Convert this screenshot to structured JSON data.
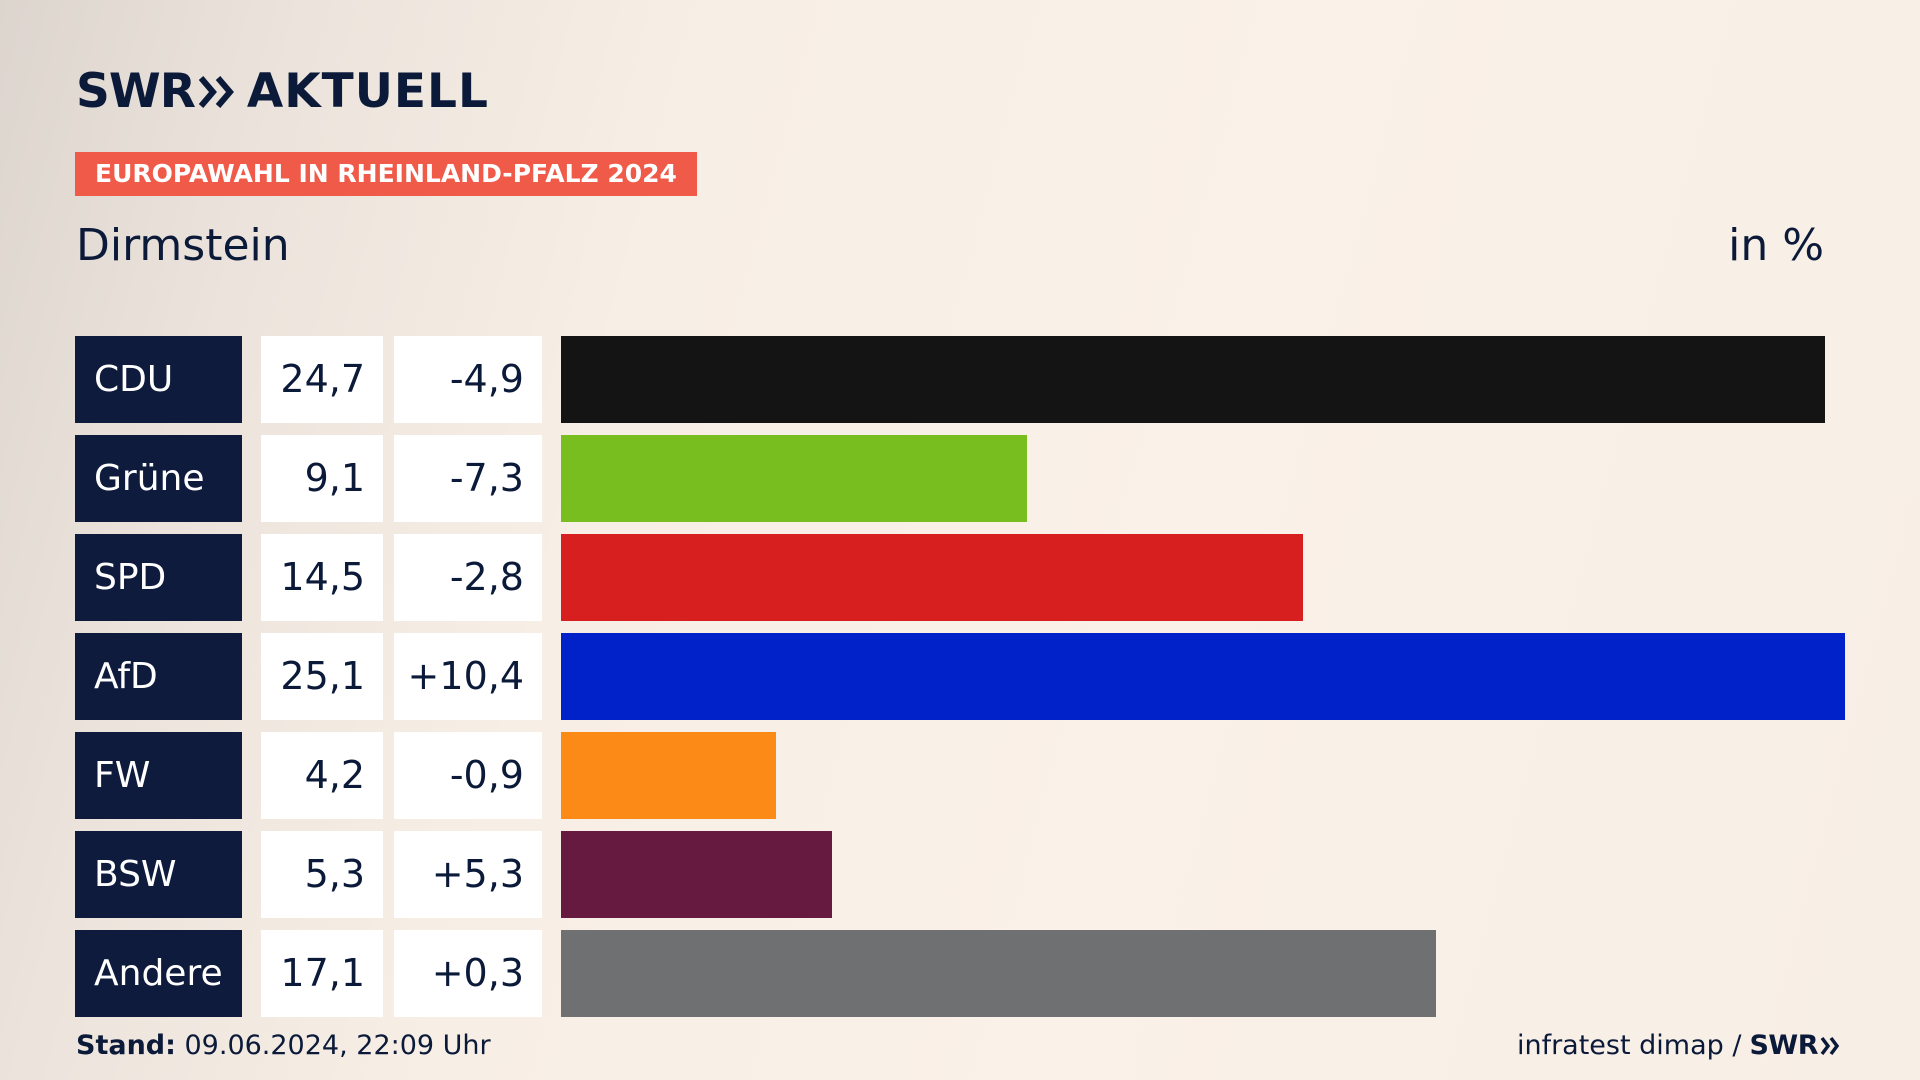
{
  "header": {
    "logo_brand": "SWR",
    "logo_product": "AKTUELL",
    "banner": "EUROPAWAHL IN RHEINLAND-PFALZ 2024",
    "region": "Dirmstein",
    "unit": "in %"
  },
  "colors": {
    "navy": "#0e1b3d",
    "banner": "#f05a49"
  },
  "chart_data": {
    "type": "bar",
    "orientation": "horizontal",
    "categories": [
      "CDU",
      "Grüne",
      "SPD",
      "AfD",
      "FW",
      "BSW",
      "Andere"
    ],
    "values": [
      24.7,
      9.1,
      14.5,
      25.1,
      4.2,
      5.3,
      17.1
    ],
    "value_labels": [
      "24,7",
      "9,1",
      "14,5",
      "25,1",
      "4,2",
      "5,3",
      "17,1"
    ],
    "change_labels": [
      "-4,9",
      "-7,3",
      "-2,8",
      "+10,4",
      "-0,9",
      "+5,3",
      "+0,3"
    ],
    "colors": [
      "#141414",
      "#78be1e",
      "#d71f1f",
      "#0022c8",
      "#fb8a16",
      "#661a3f",
      "#6f7072"
    ],
    "xlim": [
      0,
      25.1
    ]
  },
  "footer": {
    "stand_label": "Stand:",
    "stand_value": " 09.06.2024, 22:09 Uhr",
    "source": "infratest dimap /",
    "source_brand": "SWR"
  }
}
